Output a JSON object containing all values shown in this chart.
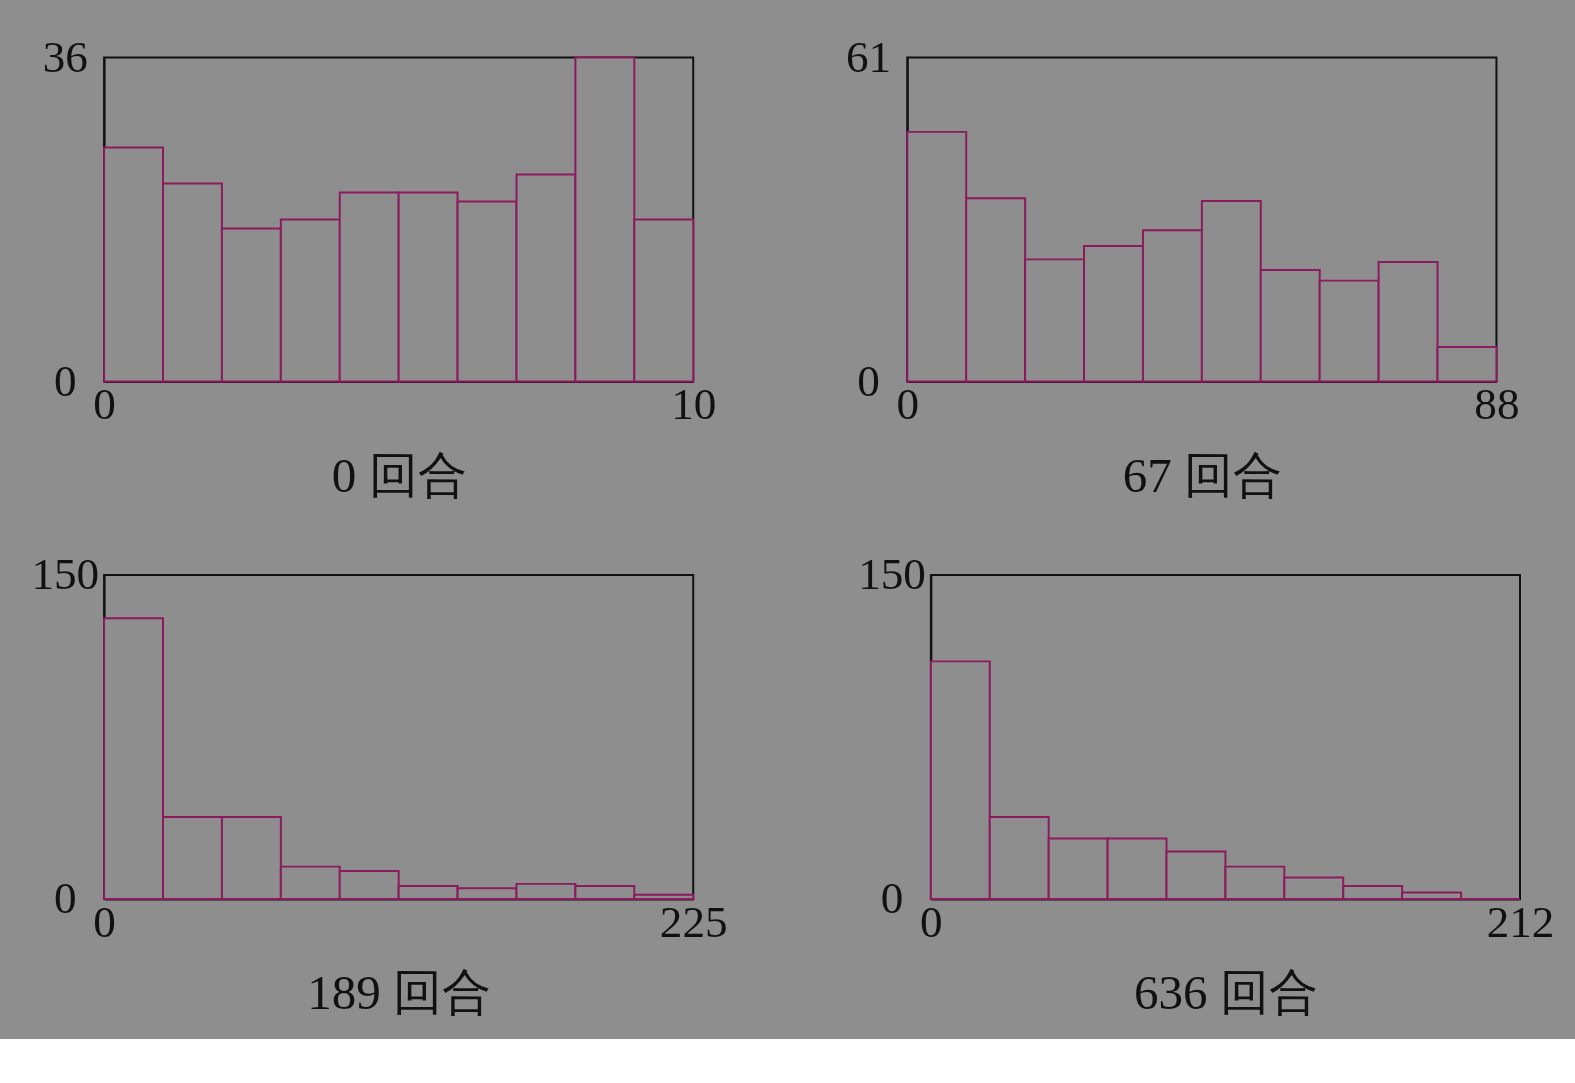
{
  "chart_data": [
    {
      "type": "histogram",
      "xlabel": "0 回合",
      "color": "#8b1a5e",
      "bins": [
        0,
        1,
        2,
        3,
        4,
        5,
        6,
        7,
        8,
        9,
        10
      ],
      "values": [
        26,
        22,
        17,
        18,
        21,
        21,
        20,
        23,
        36,
        18
      ],
      "xlim": [
        0,
        10
      ],
      "xticks": [
        0,
        10
      ],
      "ylim": [
        0,
        36
      ],
      "yticks": [
        0,
        36
      ],
      "grid": false
    },
    {
      "type": "histogram",
      "xlabel": "67 回合",
      "color": "#8b1a5e",
      "bins": [
        0,
        8.8,
        17.6,
        26.4,
        35.2,
        44,
        52.8,
        61.6,
        70.4,
        79.2,
        88
      ],
      "values": [
        47,
        34.5,
        23,
        25.5,
        28.5,
        34,
        21,
        19,
        22.5,
        6.5
      ],
      "xlim": [
        0,
        88
      ],
      "xticks": [
        0,
        88
      ],
      "ylim": [
        0,
        61
      ],
      "yticks": [
        0,
        61
      ],
      "grid": false
    },
    {
      "type": "histogram",
      "xlabel": "189 回合",
      "color": "#8b1a5e",
      "bins": [
        0,
        22.5,
        45,
        67.5,
        90,
        112.5,
        135,
        157.5,
        180,
        202.5,
        225
      ],
      "values": [
        130,
        38,
        38,
        15,
        13,
        6,
        5,
        7,
        6,
        2
      ],
      "xlim": [
        0,
        225
      ],
      "xticks": [
        0,
        225
      ],
      "ylim": [
        0,
        150
      ],
      "yticks": [
        0,
        150
      ],
      "grid": false
    },
    {
      "type": "histogram",
      "xlabel": "636 回合",
      "color": "#8b1a5e",
      "bins": [
        0,
        21.2,
        42.4,
        63.6,
        84.8,
        106,
        127.2,
        148.4,
        169.6,
        190.8,
        212
      ],
      "values": [
        110,
        38,
        28,
        28,
        22,
        15,
        10,
        6,
        3,
        0
      ],
      "xlim": [
        0,
        212
      ],
      "xticks": [
        0,
        212
      ],
      "ylim": [
        0,
        150
      ],
      "yticks": [
        0,
        150
      ],
      "grid": false
    }
  ]
}
